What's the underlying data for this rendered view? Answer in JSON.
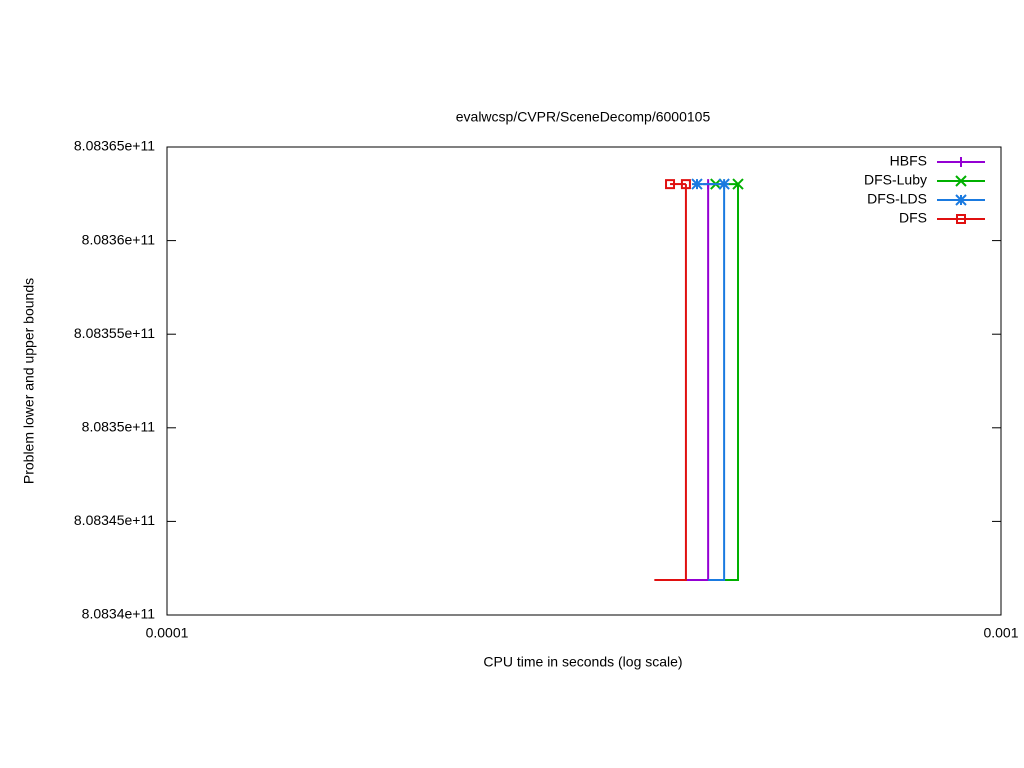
{
  "chart_data": {
    "type": "step",
    "title": "evalwcsp/CVPR/SceneDecomp/6000105",
    "xlabel": "CPU time in seconds (log scale)",
    "ylabel": "Problem lower and upper bounds",
    "xscale": "log",
    "xlim": [
      0.0001,
      0.001
    ],
    "xticks": [
      0.0001,
      0.001
    ],
    "ylim": [
      808340000000,
      808365000000
    ],
    "yticks": [
      {
        "value": 808340000000,
        "label": "8.0834e+11"
      },
      {
        "value": 808345000000,
        "label": "8.08345e+11"
      },
      {
        "value": 808350000000,
        "label": "8.0835e+11"
      },
      {
        "value": 808355000000,
        "label": "8.08355e+11"
      },
      {
        "value": 808360000000,
        "label": "8.0836e+11"
      },
      {
        "value": 808365000000,
        "label": "8.08365e+11"
      }
    ],
    "legend": "top-right",
    "series": [
      {
        "name": "HBFS",
        "color": "#9400d3",
        "marker": "plus",
        "x": [
          0.0004455
        ],
        "values": [
          808363020000
        ],
        "lower": {
          "x": [
            0.000419,
            0.0004455
          ],
          "values": [
            808341870000,
            808363020000
          ]
        }
      },
      {
        "name": "DFS-Luby",
        "color": "#00b000",
        "marker": "cross",
        "x": [
          0.000455,
          0.0004838
        ],
        "values": [
          808363020000,
          808363020000
        ],
        "lower": {
          "x": [
            0.0004656,
            0.0004838
          ],
          "values": [
            808341870000,
            808363020000
          ]
        }
      },
      {
        "name": "DFS-LDS",
        "color": "#1a7ae0",
        "marker": "star",
        "x": [
          0.000432,
          0.0004656
        ],
        "values": [
          808363020000,
          808363020000
        ],
        "lower": {
          "x": [
            0.0004455,
            0.0004656
          ],
          "values": [
            808341870000,
            808363020000
          ]
        }
      },
      {
        "name": "DFS",
        "color": "#e01010",
        "marker": "square",
        "x": [
          0.000401,
          0.000419
        ],
        "values": [
          808363020000,
          808363020000
        ],
        "lower": {
          "x": [
            0.000384,
            0.000419
          ],
          "values": [
            808341870000,
            808363020000
          ]
        }
      }
    ]
  }
}
